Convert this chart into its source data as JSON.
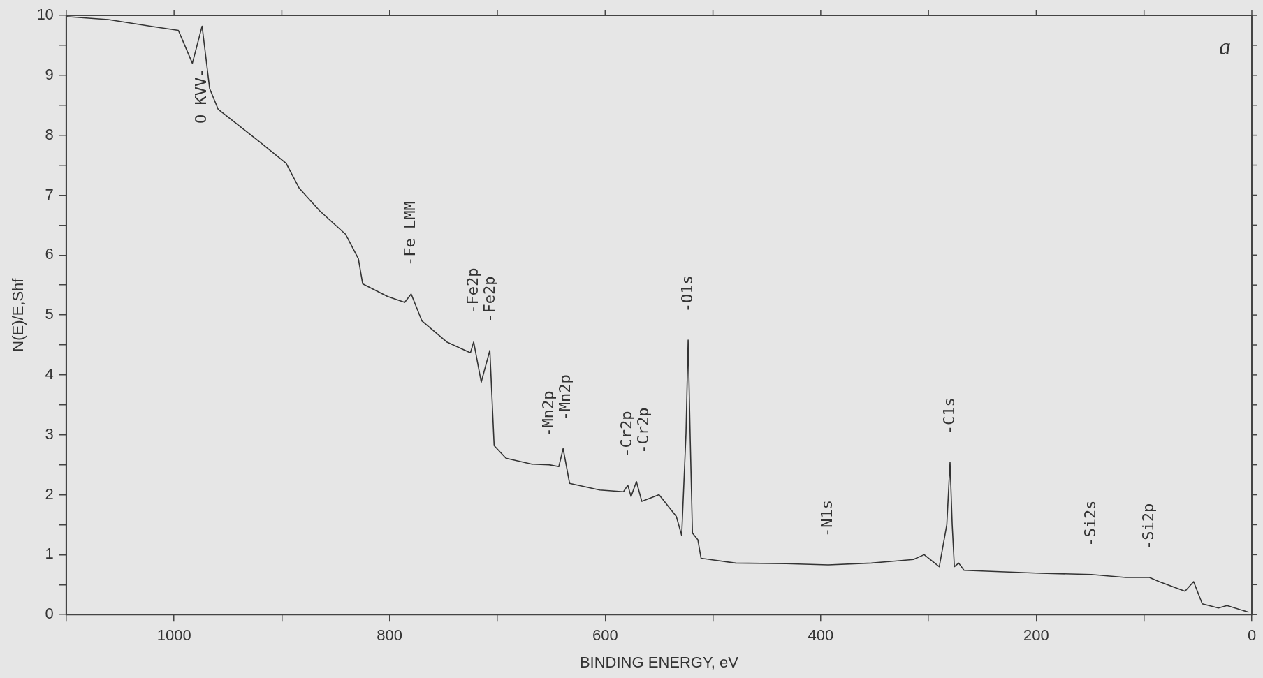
{
  "chart_data": {
    "type": "line",
    "xlabel": "BINDING ENERGY, eV",
    "ylabel": "N(E)/E,Shf",
    "xlim": [
      1100,
      0
    ],
    "ylim": [
      0,
      10
    ],
    "xticks": [
      {
        "value": 1100,
        "label": null
      },
      1000,
      {
        "value": 900,
        "label": null
      },
      800,
      {
        "value": 700,
        "label": null
      },
      600,
      {
        "value": 500,
        "label": null
      },
      400,
      {
        "value": 300,
        "label": null
      },
      200,
      {
        "value": 100,
        "label": null
      },
      0
    ],
    "yticks": [
      0,
      {
        "value": 0.5,
        "label": null
      },
      1,
      {
        "value": 1.5,
        "label": null
      },
      2,
      {
        "value": 2.5,
        "label": null
      },
      3,
      {
        "value": 3.5,
        "label": null
      },
      4,
      {
        "value": 4.5,
        "label": null
      },
      5,
      {
        "value": 5.5,
        "label": null
      },
      6,
      {
        "value": 6.5,
        "label": null
      },
      7,
      {
        "value": 7.5,
        "label": null
      },
      8,
      {
        "value": 8.5,
        "label": null
      },
      9,
      {
        "value": 9.5,
        "label": null
      },
      10
    ],
    "grid": false,
    "legend": false,
    "marker": "none",
    "line_style": "solid",
    "series": [
      {
        "color": "#333333",
        "x": [
          1100,
          1061,
          1022,
          996,
          983,
          974,
          967,
          959,
          920,
          896,
          884,
          865,
          841,
          829,
          825,
          802,
          786,
          780,
          770,
          747,
          725,
          722,
          715,
          707,
          703,
          692,
          668,
          652,
          643,
          639,
          633,
          605,
          583,
          579,
          576,
          571,
          566,
          550,
          534,
          529,
          525,
          523,
          521,
          519,
          514,
          511,
          479,
          432,
          393,
          353,
          314,
          304,
          290,
          283,
          280,
          278,
          276,
          272,
          267,
          196,
          149,
          117,
          95,
          86,
          62,
          54,
          46,
          31,
          23,
          3
        ],
        "values": [
          9.98,
          9.93,
          9.82,
          9.75,
          9.2,
          9.82,
          8.78,
          8.43,
          7.88,
          7.53,
          7.12,
          6.74,
          6.35,
          5.94,
          5.52,
          5.31,
          5.21,
          5.35,
          4.9,
          4.55,
          4.37,
          4.55,
          3.88,
          4.41,
          2.82,
          2.61,
          2.51,
          2.5,
          2.47,
          2.77,
          2.19,
          2.08,
          2.05,
          2.16,
          1.97,
          2.22,
          1.89,
          2.0,
          1.64,
          1.32,
          3.02,
          4.58,
          2.88,
          1.36,
          1.25,
          0.94,
          0.86,
          0.85,
          0.83,
          0.86,
          0.92,
          1.0,
          0.8,
          1.5,
          2.54,
          1.5,
          0.8,
          0.86,
          0.74,
          0.69,
          0.67,
          0.62,
          0.62,
          0.55,
          0.39,
          0.55,
          0.18,
          0.11,
          0.15,
          0.04
        ]
      }
    ],
    "annotations": [
      {
        "text": "O KVV-",
        "x": 974,
        "y": 9.82
      },
      {
        "text": "-Fe LMM",
        "x": 780,
        "y": 5.35
      },
      {
        "text": "-Fe2p",
        "x": 722,
        "y": 4.55
      },
      {
        "text": "-Fe2p",
        "x": 707,
        "y": 4.41
      },
      {
        "text": "-Mn2p",
        "x": 652,
        "y": 2.5
      },
      {
        "text": "-Mn2p",
        "x": 639,
        "y": 2.77
      },
      {
        "text": "-Cr2p",
        "x": 579,
        "y": 2.16
      },
      {
        "text": "-Cr2p",
        "x": 571,
        "y": 2.22
      },
      {
        "text": "-O1s",
        "x": 523,
        "y": 4.58
      },
      {
        "text": "-N1s",
        "x": 393,
        "y": 0.83
      },
      {
        "text": "-C1s",
        "x": 280,
        "y": 2.54
      },
      {
        "text": "-Si2s",
        "x": 149,
        "y": 0.67
      },
      {
        "text": "-Si2p",
        "x": 95,
        "y": 0.62
      },
      "a"
    ]
  }
}
